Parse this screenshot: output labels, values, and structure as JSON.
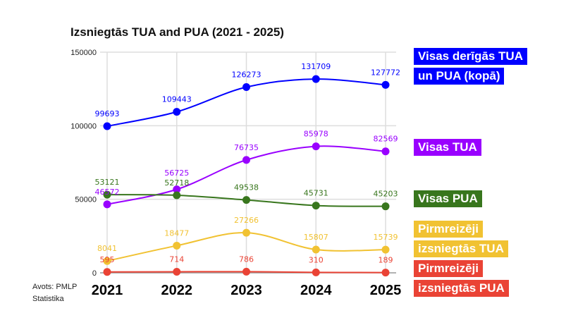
{
  "chart_data": {
    "type": "line",
    "title": "Izsniegtās TUA and PUA (2021 - 2025)",
    "categories": [
      "2021",
      "2022",
      "2023",
      "2024",
      "2025"
    ],
    "ylim": [
      0,
      150000
    ],
    "yticks": [
      "0",
      "50000",
      "100000",
      "150000"
    ],
    "grid": true,
    "legend_placement": "right",
    "series": [
      {
        "name": "Visas derīgās TUA un PUA (kopā)",
        "color": "#0000ff",
        "values": [
          99693,
          109443,
          126273,
          131709,
          127772
        ]
      },
      {
        "name": "Visas TUA",
        "color": "#9900ff",
        "values": [
          46572,
          56725,
          76735,
          85978,
          82569
        ]
      },
      {
        "name": "Visas PUA",
        "color": "#38761d",
        "values": [
          53121,
          52718,
          49538,
          45731,
          45203
        ]
      },
      {
        "name": "Pirmreizēji izsniegtās TUA",
        "color": "#f1c232",
        "values": [
          8041,
          18477,
          27266,
          15807,
          15739
        ]
      },
      {
        "name": "Pirmreizēji izsniegtās PUA",
        "color": "#ea4335",
        "values": [
          595,
          714,
          786,
          310,
          189
        ]
      }
    ]
  },
  "source": "Avots: PMLP Statistika"
}
